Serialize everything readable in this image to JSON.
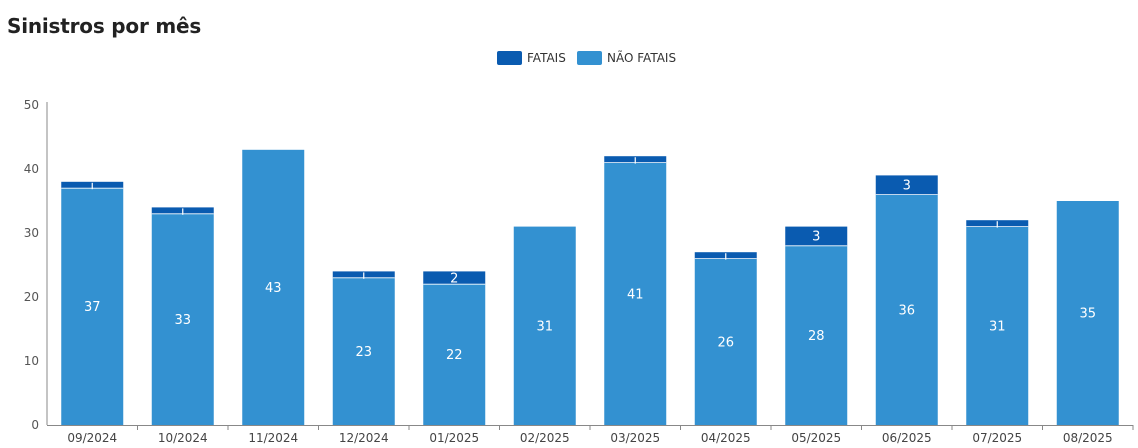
{
  "chart_data": {
    "type": "bar",
    "stacked": true,
    "title": "Sinistros por mês",
    "categories": [
      "09/2024",
      "10/2024",
      "11/2024",
      "12/2024",
      "01/2025",
      "02/2025",
      "03/2025",
      "04/2025",
      "05/2025",
      "06/2025",
      "07/2025",
      "08/2025"
    ],
    "series": [
      {
        "name": "NÃO FATAIS",
        "color": "#3391d1",
        "values": [
          37,
          33,
          43,
          23,
          22,
          31,
          41,
          26,
          28,
          36,
          31,
          35
        ]
      },
      {
        "name": "FATAIS",
        "color": "#0a5bb0",
        "values": [
          1,
          1,
          0,
          1,
          2,
          0,
          1,
          1,
          3,
          3,
          1,
          0
        ]
      }
    ],
    "data_labels_min": 2,
    "ylim": [
      0,
      50
    ],
    "yticks": [
      0,
      10,
      20,
      30,
      40,
      50
    ],
    "xlabel": "",
    "ylabel": "",
    "legend_position": "top-center",
    "grid": false
  }
}
